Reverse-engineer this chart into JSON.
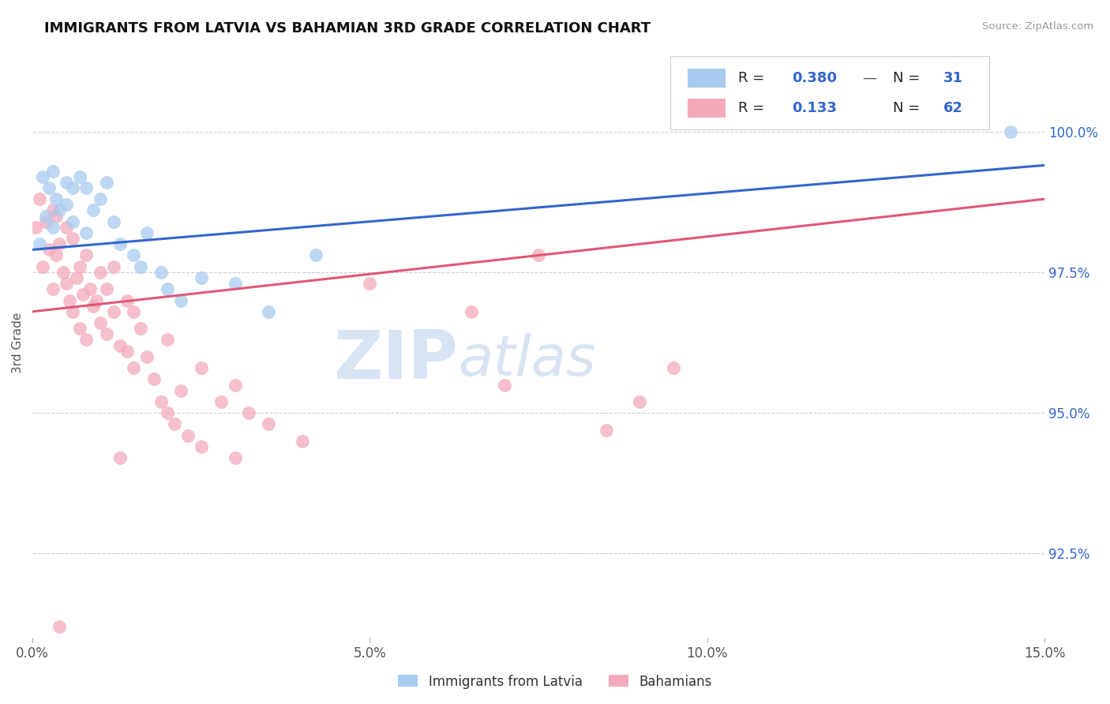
{
  "title": "IMMIGRANTS FROM LATVIA VS BAHAMIAN 3RD GRADE CORRELATION CHART",
  "source_text": "Source: ZipAtlas.com",
  "ylabel": "3rd Grade",
  "xlim": [
    0.0,
    15.0
  ],
  "ylim": [
    91.0,
    101.5
  ],
  "yticks_right": [
    92.5,
    95.0,
    97.5,
    100.0
  ],
  "ytick_labels_right": [
    "92.5%",
    "95.0%",
    "97.5%",
    "100.0%"
  ],
  "xticks": [
    0.0,
    5.0,
    10.0,
    15.0
  ],
  "xtick_labels": [
    "0.0%",
    "5.0%",
    "10.0%",
    "15.0%"
  ],
  "blue_label": "Immigrants from Latvia",
  "pink_label": "Bahamians",
  "R_blue": 0.38,
  "N_blue": 31,
  "R_pink": 0.133,
  "N_pink": 62,
  "blue_color": "#A8CBEF",
  "pink_color": "#F4AABB",
  "blue_line_color": "#3366CC",
  "pink_line_color": "#E05878",
  "watermark_color": "#D8E4F4",
  "grid_color": "#CCCCCC",
  "blue_scatter_x": [
    0.1,
    0.15,
    0.2,
    0.25,
    0.3,
    0.3,
    0.35,
    0.4,
    0.5,
    0.5,
    0.6,
    0.6,
    0.7,
    0.8,
    0.8,
    0.9,
    1.0,
    1.1,
    1.2,
    1.3,
    1.5,
    1.6,
    1.7,
    1.9,
    2.0,
    2.2,
    2.5,
    3.0,
    3.5,
    4.2,
    14.5
  ],
  "blue_scatter_y": [
    98.0,
    99.2,
    98.5,
    99.0,
    98.3,
    99.3,
    98.8,
    98.6,
    99.1,
    98.7,
    99.0,
    98.4,
    99.2,
    98.2,
    99.0,
    98.6,
    98.8,
    99.1,
    98.4,
    98.0,
    97.8,
    97.6,
    98.2,
    97.5,
    97.2,
    97.0,
    97.4,
    97.3,
    96.8,
    97.8,
    100.0
  ],
  "pink_scatter_x": [
    0.05,
    0.1,
    0.15,
    0.2,
    0.25,
    0.3,
    0.3,
    0.35,
    0.35,
    0.4,
    0.45,
    0.5,
    0.5,
    0.55,
    0.6,
    0.6,
    0.65,
    0.7,
    0.7,
    0.75,
    0.8,
    0.8,
    0.85,
    0.9,
    0.95,
    1.0,
    1.0,
    1.1,
    1.1,
    1.2,
    1.2,
    1.3,
    1.4,
    1.4,
    1.5,
    1.5,
    1.6,
    1.7,
    1.8,
    1.9,
    2.0,
    2.0,
    2.1,
    2.2,
    2.3,
    2.5,
    2.5,
    2.8,
    3.0,
    3.0,
    3.2,
    3.5,
    4.0,
    5.0,
    6.5,
    7.0,
    7.5,
    8.5,
    9.0,
    9.5,
    1.3,
    0.4
  ],
  "pink_scatter_y": [
    98.3,
    98.8,
    97.6,
    98.4,
    97.9,
    98.6,
    97.2,
    97.8,
    98.5,
    98.0,
    97.5,
    97.3,
    98.3,
    97.0,
    98.1,
    96.8,
    97.4,
    97.6,
    96.5,
    97.1,
    97.8,
    96.3,
    97.2,
    96.9,
    97.0,
    97.5,
    96.6,
    97.2,
    96.4,
    96.8,
    97.6,
    96.2,
    97.0,
    96.1,
    96.8,
    95.8,
    96.5,
    96.0,
    95.6,
    95.2,
    96.3,
    95.0,
    94.8,
    95.4,
    94.6,
    95.8,
    94.4,
    95.2,
    95.5,
    94.2,
    95.0,
    94.8,
    94.5,
    97.3,
    96.8,
    95.5,
    97.8,
    94.7,
    95.2,
    95.8,
    94.2,
    91.2
  ],
  "blue_line_x0": 0.0,
  "blue_line_y0": 97.9,
  "blue_line_x1": 15.0,
  "blue_line_y1": 99.4,
  "pink_line_x0": 0.0,
  "pink_line_y0": 96.8,
  "pink_line_x1": 15.0,
  "pink_line_y1": 98.8
}
